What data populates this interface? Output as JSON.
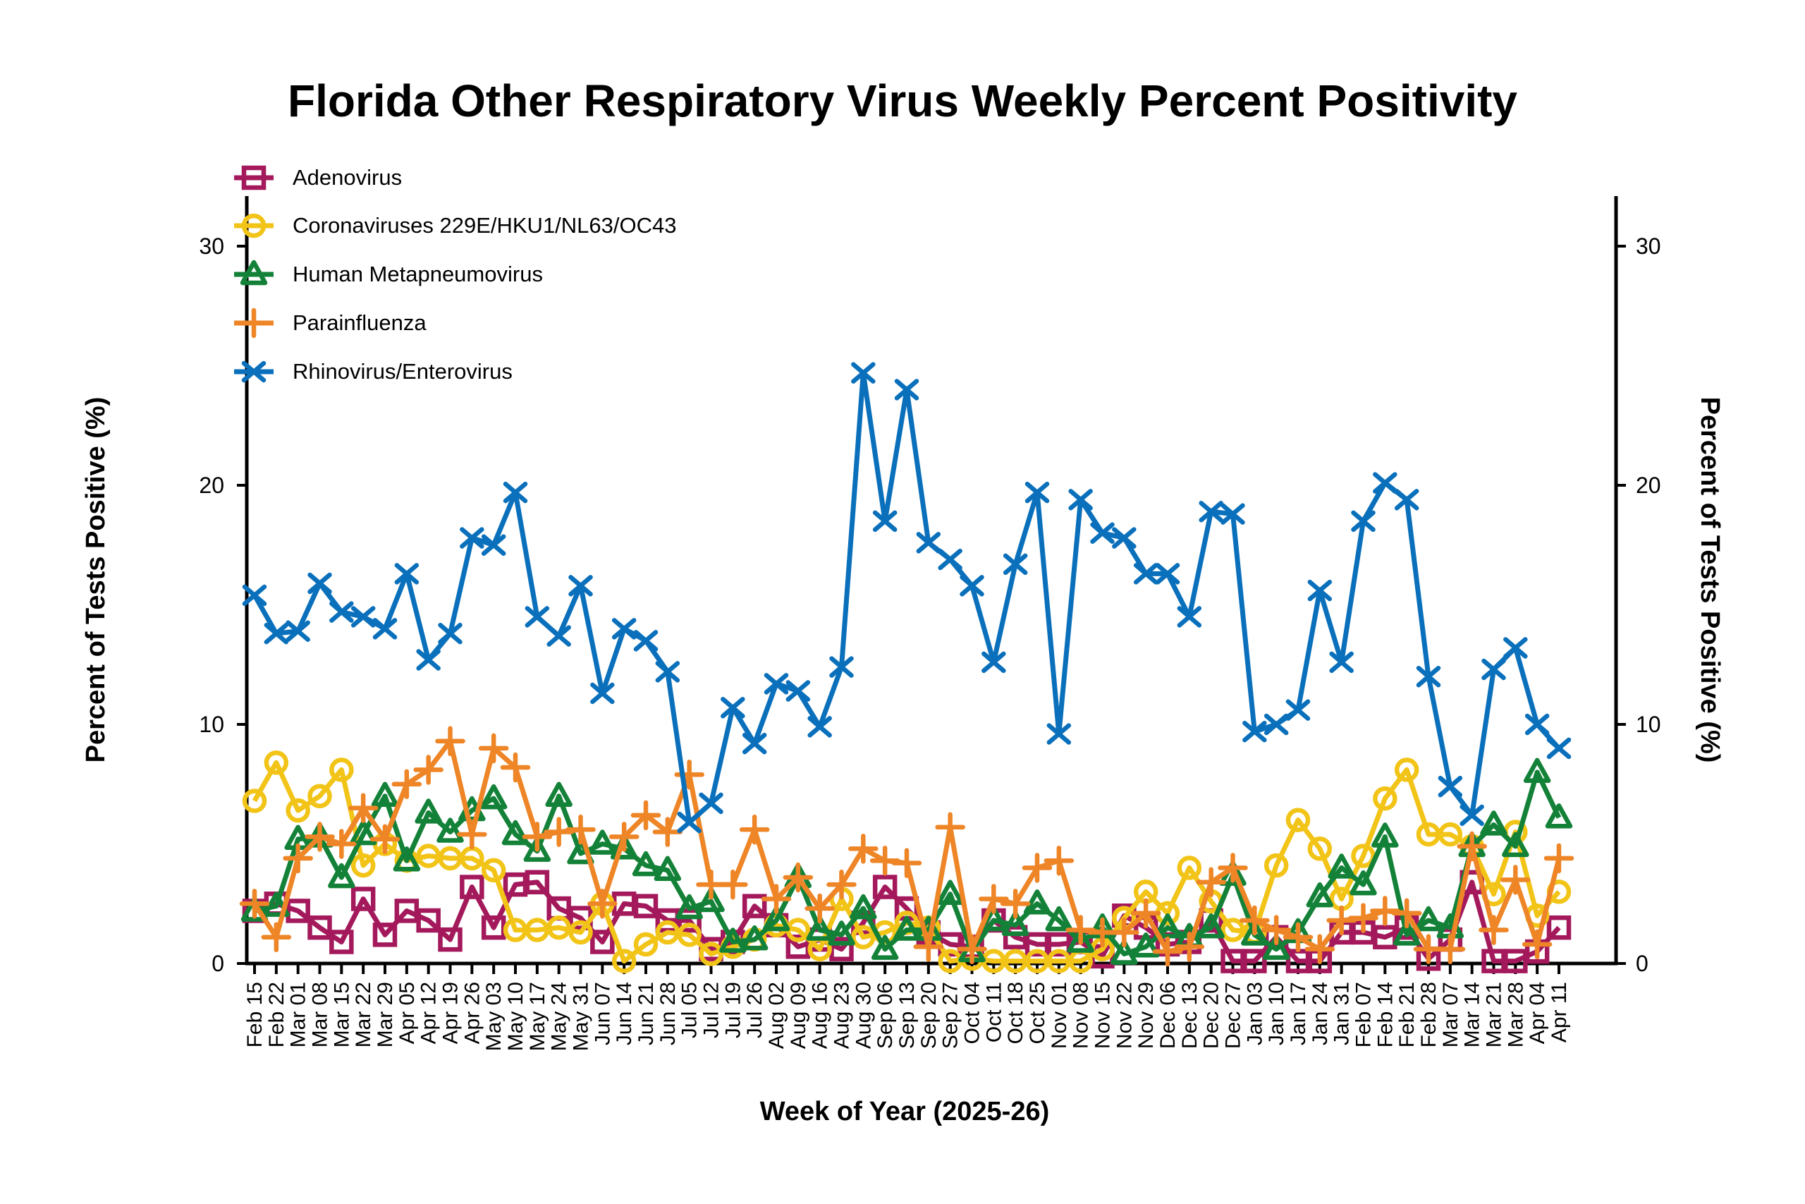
{
  "chart_data": {
    "type": "line",
    "title": "Florida Other Respiratory Virus Weekly Percent Positivity",
    "xlabel": "Week of Year (2025-26)",
    "ylabel": "Percent of Tests Positive (%)",
    "ylabel_right": "Percent of Tests Positive (%)",
    "ylim": [
      0,
      32
    ],
    "yticks": [
      0,
      10,
      20,
      30
    ],
    "grid": false,
    "legend_position": "top-left",
    "categories": [
      "Feb 15",
      "Feb 22",
      "Mar 01",
      "Mar 08",
      "Mar 15",
      "Mar 22",
      "Mar 29",
      "Apr 05",
      "Apr 12",
      "Apr 19",
      "Apr 26",
      "May 03",
      "May 10",
      "May 17",
      "May 24",
      "May 31",
      "Jun 07",
      "Jun 14",
      "Jun 21",
      "Jun 28",
      "Jul 05",
      "Jul 12",
      "Jul 19",
      "Jul 26",
      "Aug 02",
      "Aug 09",
      "Aug 16",
      "Aug 23",
      "Aug 30",
      "Sep 06",
      "Sep 13",
      "Sep 20",
      "Sep 27",
      "Oct 04",
      "Oct 11",
      "Oct 18",
      "Oct 25",
      "Nov 01",
      "Nov 08",
      "Nov 15",
      "Nov 22",
      "Nov 29",
      "Dec 06",
      "Dec 13",
      "Dec 20",
      "Dec 27",
      "Jan 03",
      "Jan 10",
      "Jan 17",
      "Jan 24",
      "Jan 31",
      "Feb 07",
      "Feb 14",
      "Feb 21",
      "Feb 28",
      "Mar 07",
      "Mar 14",
      "Mar 21",
      "Mar 28",
      "Apr 04",
      "Apr 11"
    ],
    "series": [
      {
        "name": "Adenovirus",
        "color": "#A3195B",
        "marker": "square",
        "values": [
          2.2,
          2.5,
          2.2,
          1.5,
          0.9,
          2.7,
          1.2,
          2.2,
          1.8,
          1.0,
          3.2,
          1.5,
          3.3,
          3.4,
          2.3,
          1.9,
          0.9,
          2.5,
          2.4,
          1.8,
          1.8,
          0.6,
          0.9,
          2.4,
          1.6,
          0.7,
          1.0,
          0.6,
          1.7,
          3.2,
          2.3,
          1.3,
          0.8,
          0.7,
          1.8,
          1.1,
          0.8,
          0.8,
          0.9,
          0.3,
          2.0,
          1.5,
          0.8,
          0.9,
          1.8,
          0.1,
          0.1,
          1.1,
          0.1,
          0.1,
          1.3,
          1.3,
          1.1,
          1.5,
          0.2,
          1.0,
          3.4,
          0.1,
          0.1,
          0.5,
          1.5
        ]
      },
      {
        "name": "Coronaviruses 229E/HKU1/NL63/OC43",
        "color": "#F2C418",
        "marker": "circle",
        "values": [
          6.8,
          8.4,
          6.4,
          7.0,
          8.1,
          4.1,
          5.0,
          4.3,
          4.5,
          4.4,
          4.4,
          3.9,
          1.4,
          1.4,
          1.5,
          1.3,
          2.5,
          0.1,
          0.8,
          1.3,
          1.2,
          0.4,
          0.7,
          1.0,
          1.6,
          1.4,
          0.6,
          2.7,
          1.1,
          1.3,
          1.7,
          1.5,
          0.1,
          0.2,
          0.1,
          0.1,
          0.1,
          0.1,
          0.1,
          0.6,
          1.9,
          3.0,
          2.1,
          4.0,
          2.6,
          1.4,
          1.3,
          4.1,
          6.0,
          4.8,
          2.7,
          4.5,
          6.9,
          8.1,
          5.4,
          5.4,
          4.9,
          2.9,
          5.5,
          2.0,
          3.0
        ]
      },
      {
        "name": "Human Metapneumovirus",
        "color": "#138238",
        "marker": "triangle",
        "values": [
          2.2,
          2.4,
          5.2,
          5.3,
          3.6,
          5.4,
          7.0,
          4.3,
          6.3,
          5.5,
          6.4,
          6.9,
          5.4,
          4.7,
          7.0,
          4.6,
          5.0,
          4.8,
          4.1,
          3.9,
          2.3,
          2.6,
          0.9,
          1.0,
          1.8,
          3.6,
          1.4,
          1.2,
          2.3,
          0.6,
          1.4,
          1.4,
          2.9,
          0.5,
          1.8,
          1.6,
          2.5,
          1.8,
          0.9,
          1.5,
          0.4,
          0.7,
          1.5,
          1.1,
          1.5,
          3.7,
          1.2,
          0.6,
          1.3,
          2.8,
          4.0,
          3.3,
          5.3,
          1.2,
          1.8,
          1.5,
          4.9,
          5.8,
          4.9,
          8.0,
          6.1
        ]
      },
      {
        "name": "Parainfluenza",
        "color": "#EE8526",
        "marker": "plus",
        "values": [
          2.5,
          1.1,
          4.4,
          5.3,
          5.0,
          6.5,
          5.2,
          7.5,
          8.1,
          9.3,
          5.4,
          9.0,
          8.2,
          5.3,
          5.5,
          5.6,
          2.5,
          5.3,
          6.2,
          5.5,
          7.9,
          3.3,
          3.3,
          5.6,
          2.7,
          3.6,
          2.3,
          3.3,
          4.8,
          4.3,
          4.2,
          0.7,
          5.7,
          0.6,
          2.7,
          2.5,
          4.0,
          4.3,
          1.4,
          1.3,
          1.3,
          2.1,
          0.5,
          0.7,
          3.4,
          4.0,
          1.8,
          1.4,
          1.1,
          0.6,
          1.8,
          1.9,
          2.2,
          2.1,
          0.6,
          0.6,
          4.9,
          1.4,
          3.5,
          0.8,
          4.4
        ]
      },
      {
        "name": "Rhinovirus/Enterovirus",
        "color": "#0A70BB",
        "marker": "x",
        "values": [
          15.4,
          13.8,
          13.9,
          15.9,
          14.7,
          14.5,
          14.0,
          16.3,
          12.7,
          13.8,
          17.8,
          17.5,
          19.7,
          14.5,
          13.7,
          15.8,
          11.3,
          14.0,
          13.5,
          12.2,
          5.9,
          6.7,
          10.7,
          9.2,
          11.7,
          11.4,
          9.9,
          12.4,
          24.7,
          18.5,
          24.0,
          17.6,
          16.9,
          15.8,
          12.6,
          16.7,
          19.7,
          9.6,
          19.4,
          18.0,
          17.8,
          16.3,
          16.3,
          14.5,
          18.9,
          18.8,
          9.7,
          10.0,
          10.6,
          15.6,
          12.6,
          18.5,
          20.1,
          19.4,
          12.0,
          7.4,
          6.2,
          12.3,
          13.2,
          10.0,
          9.0
        ]
      }
    ]
  },
  "legend": {
    "items": [
      {
        "label": "Adenovirus",
        "icon": "square-marker-icon"
      },
      {
        "label": "Coronaviruses 229E/HKU1/NL63/OC43",
        "icon": "circle-marker-icon"
      },
      {
        "label": "Human Metapneumovirus",
        "icon": "triangle-marker-icon"
      },
      {
        "label": "Parainfluenza",
        "icon": "plus-marker-icon"
      },
      {
        "label": "Rhinovirus/Enterovirus",
        "icon": "x-marker-icon"
      }
    ]
  }
}
